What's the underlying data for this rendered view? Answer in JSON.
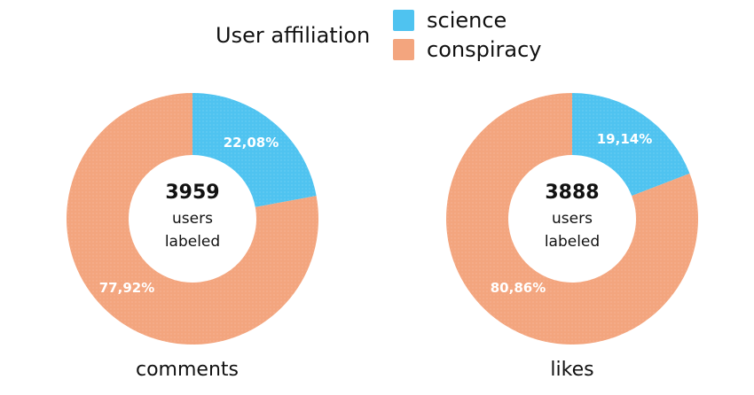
{
  "legend": {
    "title": "User affiliation",
    "items": [
      {
        "label": "science",
        "color": "#4fc3f0"
      },
      {
        "label": "conspiracy",
        "color": "#f3a57e"
      }
    ]
  },
  "chart_data": [
    {
      "type": "pie",
      "variant": "donut",
      "label": "comments",
      "center_value": "3959",
      "center_line1": "users",
      "center_line2": "labeled",
      "slices": [
        {
          "name": "science",
          "value": 22.08,
          "text": "22,08%",
          "color": "#4fc3f0"
        },
        {
          "name": "conspiracy",
          "value": 77.92,
          "text": "77,92%",
          "color": "#f3a57e"
        }
      ]
    },
    {
      "type": "pie",
      "variant": "donut",
      "label": "likes",
      "center_value": "3888",
      "center_line1": "users",
      "center_line2": "labeled",
      "slices": [
        {
          "name": "science",
          "value": 19.14,
          "text": "19,14%",
          "color": "#4fc3f0"
        },
        {
          "name": "conspiracy",
          "value": 80.86,
          "text": "80,86%",
          "color": "#f3a57e"
        }
      ]
    }
  ]
}
